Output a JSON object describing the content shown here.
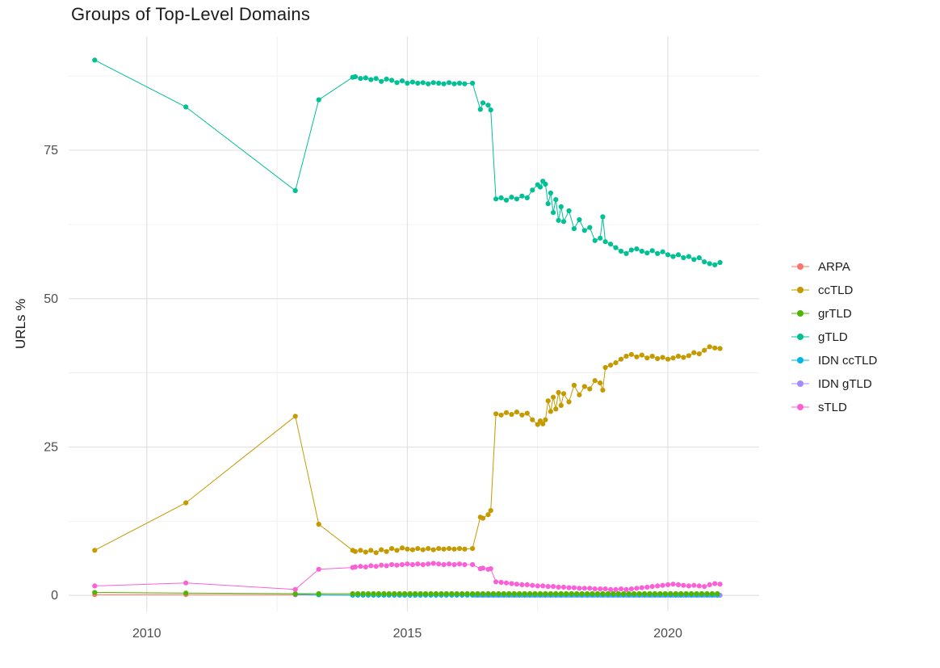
{
  "chart_data": {
    "type": "scatter-line",
    "title": "Groups of Top-Level Domains",
    "xlabel": "",
    "ylabel": "URLs %",
    "xlim": [
      2008.5,
      2021.75
    ],
    "ylim": [
      -2.7,
      94.2
    ],
    "grid": true,
    "legend_position": "right",
    "x_ticks": [
      2010,
      2015,
      2020
    ],
    "y_ticks": [
      0,
      25,
      50,
      75
    ],
    "x_minor_ticks": [
      2012.5,
      2017.5
    ],
    "y_minor_ticks": [
      12.5,
      37.5,
      62.5,
      87.5
    ],
    "series": [
      {
        "name": "ARPA",
        "color": "#F8766D",
        "z": 1,
        "points": [
          [
            2009,
            0.15
          ],
          [
            2010.75,
            0.15
          ],
          [
            2012.85,
            0.1
          ]
        ],
        "dense": {
          "x0": 2013.95,
          "x1": 2021.0,
          "dx": 0.1,
          "y": 0.05
        }
      },
      {
        "name": "ccTLD",
        "color": "#C49A00",
        "z": 5,
        "points": [
          [
            2009,
            7.6
          ],
          [
            2010.75,
            15.6
          ],
          [
            2012.85,
            30.2
          ],
          [
            2013.3,
            12
          ],
          [
            2013.95,
            7.6
          ],
          [
            2014,
            7.4
          ],
          [
            2014.1,
            7.6
          ],
          [
            2014.2,
            7.3
          ],
          [
            2014.3,
            7.6
          ],
          [
            2014.4,
            7.2
          ],
          [
            2014.5,
            7.7
          ],
          [
            2014.6,
            7.4
          ],
          [
            2014.7,
            7.9
          ],
          [
            2014.8,
            7.6
          ],
          [
            2014.9,
            8
          ],
          [
            2015,
            7.8
          ],
          [
            2015.1,
            7.7
          ],
          [
            2015.2,
            7.9
          ],
          [
            2015.3,
            7.7
          ],
          [
            2015.4,
            7.9
          ],
          [
            2015.5,
            7.7
          ],
          [
            2015.6,
            7.9
          ],
          [
            2015.7,
            7.8
          ],
          [
            2015.8,
            7.9
          ],
          [
            2015.9,
            7.8
          ],
          [
            2016,
            7.9
          ],
          [
            2016.1,
            7.8
          ],
          [
            2016.25,
            7.9
          ],
          [
            2016.4,
            13.2
          ],
          [
            2016.45,
            13
          ],
          [
            2016.55,
            13.6
          ],
          [
            2016.6,
            14.3
          ],
          [
            2016.7,
            30.6
          ],
          [
            2016.8,
            30.4
          ],
          [
            2016.9,
            30.8
          ],
          [
            2017,
            30.5
          ],
          [
            2017.1,
            30.9
          ],
          [
            2017.2,
            30.4
          ],
          [
            2017.3,
            30.7
          ],
          [
            2017.4,
            29.6
          ],
          [
            2017.5,
            28.8
          ],
          [
            2017.55,
            29.4
          ],
          [
            2017.6,
            28.9
          ],
          [
            2017.65,
            29.6
          ],
          [
            2017.7,
            32.8
          ],
          [
            2017.75,
            31
          ],
          [
            2017.8,
            33.4
          ],
          [
            2017.85,
            31.4
          ],
          [
            2017.9,
            34.2
          ],
          [
            2017.95,
            32
          ],
          [
            2018,
            34
          ],
          [
            2018.1,
            32.6
          ],
          [
            2018.2,
            35.4
          ],
          [
            2018.3,
            33.8
          ],
          [
            2018.4,
            35.2
          ],
          [
            2018.5,
            34.8
          ],
          [
            2018.6,
            36.2
          ],
          [
            2018.7,
            35.8
          ],
          [
            2018.75,
            34.6
          ],
          [
            2018.8,
            38.4
          ],
          [
            2018.9,
            38.8
          ],
          [
            2019,
            39.2
          ],
          [
            2019.1,
            39.8
          ],
          [
            2019.2,
            40.3
          ],
          [
            2019.3,
            40.6
          ],
          [
            2019.4,
            40.2
          ],
          [
            2019.5,
            40.5
          ],
          [
            2019.6,
            40
          ],
          [
            2019.7,
            40.3
          ],
          [
            2019.8,
            39.9
          ],
          [
            2019.9,
            40.1
          ],
          [
            2020,
            39.8
          ],
          [
            2020.1,
            40
          ],
          [
            2020.2,
            40.3
          ],
          [
            2020.3,
            40.1
          ],
          [
            2020.4,
            40.4
          ],
          [
            2020.5,
            40.9
          ],
          [
            2020.6,
            40.7
          ],
          [
            2020.7,
            41.3
          ],
          [
            2020.8,
            41.9
          ],
          [
            2020.9,
            41.7
          ],
          [
            2021,
            41.6
          ]
        ]
      },
      {
        "name": "grTLD",
        "color": "#53B400",
        "z": 4,
        "points": [
          [
            2009,
            0.5
          ],
          [
            2010.75,
            0.4
          ],
          [
            2012.85,
            0.3
          ],
          [
            2013.3,
            0.3
          ]
        ],
        "dense": {
          "x0": 2013.95,
          "x1": 2021.0,
          "dx": 0.1,
          "y": 0.3
        }
      },
      {
        "name": "gTLD",
        "color": "#00C094",
        "z": 6,
        "points": [
          [
            2009,
            90.2
          ],
          [
            2010.75,
            82.3
          ],
          [
            2012.85,
            68.2
          ],
          [
            2013.3,
            83.5
          ],
          [
            2013.95,
            87.3
          ],
          [
            2014,
            87.4
          ],
          [
            2014.1,
            87.1
          ],
          [
            2014.2,
            87.2
          ],
          [
            2014.3,
            86.9
          ],
          [
            2014.4,
            87.1
          ],
          [
            2014.5,
            86.6
          ],
          [
            2014.6,
            87
          ],
          [
            2014.7,
            86.8
          ],
          [
            2014.8,
            86.4
          ],
          [
            2014.9,
            86.7
          ],
          [
            2015,
            86.3
          ],
          [
            2015.1,
            86.5
          ],
          [
            2015.2,
            86.3
          ],
          [
            2015.3,
            86.4
          ],
          [
            2015.4,
            86.2
          ],
          [
            2015.5,
            86.4
          ],
          [
            2015.6,
            86.3
          ],
          [
            2015.7,
            86.2
          ],
          [
            2015.8,
            86.4
          ],
          [
            2015.9,
            86.2
          ],
          [
            2016,
            86.3
          ],
          [
            2016.1,
            86.2
          ],
          [
            2016.25,
            86.3
          ],
          [
            2016.4,
            81.9
          ],
          [
            2016.45,
            83
          ],
          [
            2016.55,
            82.6
          ],
          [
            2016.6,
            81.8
          ],
          [
            2016.7,
            66.8
          ],
          [
            2016.8,
            67
          ],
          [
            2016.9,
            66.6
          ],
          [
            2017,
            67.1
          ],
          [
            2017.1,
            66.8
          ],
          [
            2017.2,
            67.3
          ],
          [
            2017.3,
            67
          ],
          [
            2017.4,
            68.3
          ],
          [
            2017.5,
            69.2
          ],
          [
            2017.55,
            68.8
          ],
          [
            2017.6,
            69.8
          ],
          [
            2017.65,
            69.3
          ],
          [
            2017.7,
            66
          ],
          [
            2017.75,
            67.8
          ],
          [
            2017.8,
            64.5
          ],
          [
            2017.85,
            66.7
          ],
          [
            2017.9,
            63.2
          ],
          [
            2017.95,
            65.5
          ],
          [
            2018,
            63
          ],
          [
            2018.1,
            64.8
          ],
          [
            2018.2,
            61.8
          ],
          [
            2018.3,
            63.3
          ],
          [
            2018.4,
            61.5
          ],
          [
            2018.5,
            62
          ],
          [
            2018.6,
            59.8
          ],
          [
            2018.7,
            60.2
          ],
          [
            2018.75,
            63.8
          ],
          [
            2018.8,
            59.6
          ],
          [
            2018.9,
            59.2
          ],
          [
            2019,
            58.6
          ],
          [
            2019.1,
            58
          ],
          [
            2019.2,
            57.6
          ],
          [
            2019.3,
            58.2
          ],
          [
            2019.4,
            58.4
          ],
          [
            2019.5,
            58
          ],
          [
            2019.6,
            57.7
          ],
          [
            2019.7,
            58.1
          ],
          [
            2019.8,
            57.6
          ],
          [
            2019.9,
            57.9
          ],
          [
            2020,
            57.4
          ],
          [
            2020.1,
            57.1
          ],
          [
            2020.2,
            57.4
          ],
          [
            2020.3,
            56.9
          ],
          [
            2020.4,
            57.1
          ],
          [
            2020.5,
            56.6
          ],
          [
            2020.6,
            56.9
          ],
          [
            2020.7,
            56.2
          ],
          [
            2020.8,
            55.9
          ],
          [
            2020.9,
            55.7
          ],
          [
            2021,
            56.1
          ]
        ]
      },
      {
        "name": "IDN ccTLD",
        "color": "#00B6EB",
        "z": 3,
        "points": [
          [
            2012.85,
            0.2
          ],
          [
            2013.3,
            0.1
          ]
        ],
        "dense": {
          "x0": 2013.95,
          "x1": 2021.0,
          "dx": 0.1,
          "y": 0.05
        }
      },
      {
        "name": "IDN gTLD",
        "color": "#A58AFF",
        "z": 2,
        "points": [],
        "dense": {
          "x0": 2016.3,
          "x1": 2021.0,
          "dx": 0.1,
          "y": 0.03
        }
      },
      {
        "name": "sTLD",
        "color": "#FB61D7",
        "z": 7,
        "points": [
          [
            2009,
            1.6
          ],
          [
            2010.75,
            2.1
          ],
          [
            2012.85,
            1
          ],
          [
            2013.3,
            4.4
          ],
          [
            2013.95,
            4.7
          ],
          [
            2014,
            4.8
          ],
          [
            2014.1,
            4.9
          ],
          [
            2014.2,
            4.8
          ],
          [
            2014.3,
            5
          ],
          [
            2014.4,
            4.9
          ],
          [
            2014.5,
            5.1
          ],
          [
            2014.6,
            5
          ],
          [
            2014.7,
            5.2
          ],
          [
            2014.8,
            5.1
          ],
          [
            2014.9,
            5.2
          ],
          [
            2015,
            5.3
          ],
          [
            2015.1,
            5.2
          ],
          [
            2015.2,
            5.3
          ],
          [
            2015.3,
            5.2
          ],
          [
            2015.4,
            5.3
          ],
          [
            2015.5,
            5.4
          ],
          [
            2015.6,
            5.3
          ],
          [
            2015.7,
            5.2
          ],
          [
            2015.8,
            5.3
          ],
          [
            2015.9,
            5.2
          ],
          [
            2016,
            5.3
          ],
          [
            2016.1,
            5.2
          ],
          [
            2016.25,
            5.2
          ],
          [
            2016.4,
            4.5
          ],
          [
            2016.45,
            4.6
          ],
          [
            2016.55,
            4.4
          ],
          [
            2016.6,
            4.5
          ],
          [
            2016.7,
            2.3
          ],
          [
            2016.8,
            2.2
          ],
          [
            2016.9,
            2.1
          ],
          [
            2017,
            2
          ],
          [
            2017.1,
            1.9
          ],
          [
            2017.2,
            1.8
          ],
          [
            2017.3,
            1.8
          ],
          [
            2017.4,
            1.7
          ],
          [
            2017.5,
            1.6
          ],
          [
            2017.6,
            1.6
          ],
          [
            2017.7,
            1.5
          ],
          [
            2017.8,
            1.5
          ],
          [
            2017.9,
            1.4
          ],
          [
            2018,
            1.4
          ],
          [
            2018.1,
            1.3
          ],
          [
            2018.2,
            1.3
          ],
          [
            2018.3,
            1.2
          ],
          [
            2018.4,
            1.2
          ],
          [
            2018.5,
            1.2
          ],
          [
            2018.6,
            1.1
          ],
          [
            2018.7,
            1.1
          ],
          [
            2018.8,
            1.1
          ],
          [
            2018.9,
            1
          ],
          [
            2019,
            1
          ],
          [
            2019.1,
            1.1
          ],
          [
            2019.2,
            1
          ],
          [
            2019.3,
            1.1
          ],
          [
            2019.4,
            1.2
          ],
          [
            2019.5,
            1.3
          ],
          [
            2019.6,
            1.4
          ],
          [
            2019.7,
            1.5
          ],
          [
            2019.8,
            1.6
          ],
          [
            2019.9,
            1.7
          ],
          [
            2020,
            1.8
          ],
          [
            2020.1,
            1.9
          ],
          [
            2020.2,
            1.8
          ],
          [
            2020.3,
            1.7
          ],
          [
            2020.4,
            1.6
          ],
          [
            2020.5,
            1.7
          ],
          [
            2020.6,
            1.6
          ],
          [
            2020.7,
            1.5
          ],
          [
            2020.8,
            1.8
          ],
          [
            2020.9,
            2
          ],
          [
            2021,
            1.9
          ]
        ]
      }
    ]
  }
}
